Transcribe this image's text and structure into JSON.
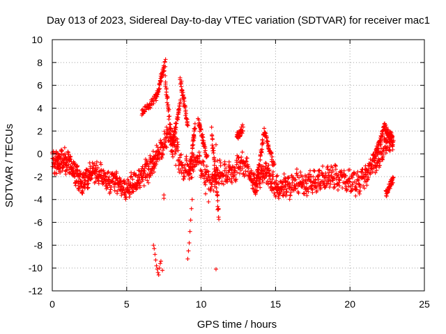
{
  "chart_data": {
    "type": "scatter",
    "title": "Day 013 of 2023, Sidereal Day-to-day VTEC variation (SDTVAR) for receiver mac1",
    "xlabel": "GPS time / hours",
    "ylabel": "SDTVAR / TECUs",
    "xlim": [
      0,
      25
    ],
    "ylim": [
      -12,
      10
    ],
    "x_ticks": [
      0,
      5,
      10,
      15,
      20,
      25
    ],
    "y_ticks": [
      -12,
      -10,
      -8,
      -6,
      -4,
      -2,
      0,
      2,
      4,
      6,
      8,
      10
    ],
    "grid": true,
    "marker": "+",
    "colors": {
      "series": "#ff0000",
      "axes": "#000000",
      "grid": "#a0a0a0"
    },
    "series": [
      {
        "name": "SDTVAR",
        "trend": [
          [
            0.0,
            -0.8
          ],
          [
            0.3,
            -0.9
          ],
          [
            0.5,
            -0.6
          ],
          [
            0.8,
            -0.5
          ],
          [
            1.1,
            -0.9
          ],
          [
            1.4,
            -1.4
          ],
          [
            1.7,
            -2.0
          ],
          [
            2.0,
            -2.9
          ],
          [
            2.3,
            -2.1
          ],
          [
            2.6,
            -1.6
          ],
          [
            3.0,
            -1.6
          ],
          [
            3.4,
            -2.0
          ],
          [
            3.8,
            -2.6
          ],
          [
            4.2,
            -2.3
          ],
          [
            4.6,
            -2.8
          ],
          [
            5.0,
            -3.0
          ],
          [
            5.4,
            -2.7
          ],
          [
            5.8,
            -2.3
          ],
          [
            6.2,
            -1.7
          ],
          [
            6.6,
            -1.2
          ],
          [
            6.9,
            -0.6
          ],
          [
            7.3,
            0.5
          ],
          [
            7.7,
            1.5
          ],
          [
            8.2,
            0.8
          ],
          [
            8.7,
            -1.0
          ],
          [
            9.2,
            -1.6
          ],
          [
            9.7,
            -0.4
          ],
          [
            10.2,
            -1.6
          ],
          [
            10.7,
            -2.6
          ],
          [
            11.2,
            -1.6
          ],
          [
            11.7,
            -1.8
          ],
          [
            12.2,
            -1.6
          ],
          [
            12.7,
            -0.8
          ],
          [
            13.2,
            -1.6
          ],
          [
            13.6,
            -2.6
          ],
          [
            14.0,
            -1.8
          ],
          [
            14.4,
            -1.5
          ],
          [
            14.8,
            -2.6
          ],
          [
            15.2,
            -3.1
          ],
          [
            15.6,
            -2.8
          ],
          [
            16.0,
            -2.9
          ],
          [
            16.5,
            -2.3
          ],
          [
            17.0,
            -2.6
          ],
          [
            17.5,
            -2.4
          ],
          [
            18.0,
            -2.3
          ],
          [
            18.5,
            -2.0
          ],
          [
            19.0,
            -2.1
          ],
          [
            19.5,
            -2.3
          ],
          [
            20.0,
            -2.4
          ],
          [
            20.5,
            -2.6
          ],
          [
            21.0,
            -2.0
          ],
          [
            21.4,
            -1.3
          ],
          [
            21.8,
            -0.6
          ],
          [
            22.2,
            0.3
          ],
          [
            22.6,
            1.0
          ],
          [
            22.9,
            1.2
          ]
        ],
        "extra_segments": [
          {
            "x": [
              6.0,
              7.0
            ],
            "y": [
              3.5,
              5.0
            ]
          },
          {
            "x": [
              7.0,
              7.6
            ],
            "y": [
              5.0,
              8.0
            ]
          },
          {
            "x": [
              7.6,
              8.1
            ],
            "y": [
              6.5,
              0.0
            ]
          },
          {
            "x": [
              8.1,
              8.6
            ],
            "y": [
              1.0,
              4.5
            ]
          },
          {
            "x": [
              8.6,
              9.1
            ],
            "y": [
              6.5,
              2.5
            ]
          },
          {
            "x": [
              9.2,
              9.6
            ],
            "y": [
              -2.0,
              2.5
            ]
          },
          {
            "x": [
              9.8,
              10.4
            ],
            "y": [
              3.0,
              -0.5
            ]
          },
          {
            "x": [
              10.7,
              11.2
            ],
            "y": [
              2.0,
              -5.5
            ]
          },
          {
            "x": [
              12.4,
              12.8
            ],
            "y": [
              1.5,
              2.2
            ]
          },
          {
            "x": [
              13.6,
              14.2
            ],
            "y": [
              -3.5,
              1.5
            ]
          },
          {
            "x": [
              14.2,
              14.9
            ],
            "y": [
              2.0,
              -1.0
            ]
          },
          {
            "x": [
              21.6,
              22.3
            ],
            "y": [
              -0.5,
              2.3
            ]
          },
          {
            "x": [
              22.3,
              22.9
            ],
            "y": [
              2.5,
              1.0
            ]
          },
          {
            "x": [
              22.4,
              22.9
            ],
            "y": [
              -3.5,
              -2.3
            ]
          }
        ],
        "outliers": [
          [
            6.8,
            -8.0
          ],
          [
            6.85,
            -8.3
          ],
          [
            6.9,
            -8.8
          ],
          [
            6.95,
            -9.3
          ],
          [
            7.0,
            -9.8
          ],
          [
            7.05,
            -10.1
          ],
          [
            7.1,
            -10.4
          ],
          [
            7.15,
            -10.6
          ],
          [
            7.2,
            -10.0
          ],
          [
            7.25,
            -9.6
          ],
          [
            7.3,
            -9.4
          ],
          [
            7.4,
            -10.2
          ],
          [
            7.5,
            -3.9
          ],
          [
            7.5,
            -3.6
          ],
          [
            8.3,
            -1.0
          ],
          [
            9.1,
            -9.2
          ],
          [
            9.15,
            -8.5
          ],
          [
            9.2,
            -7.8
          ],
          [
            9.25,
            -6.8
          ],
          [
            9.3,
            -5.8
          ],
          [
            9.35,
            -4.8
          ],
          [
            9.4,
            -4.0
          ],
          [
            10.5,
            -4.2
          ],
          [
            10.3,
            -3.5
          ],
          [
            11.0,
            -10.1
          ],
          [
            11.1,
            -0.6
          ],
          [
            11.0,
            0.8
          ]
        ]
      }
    ]
  }
}
